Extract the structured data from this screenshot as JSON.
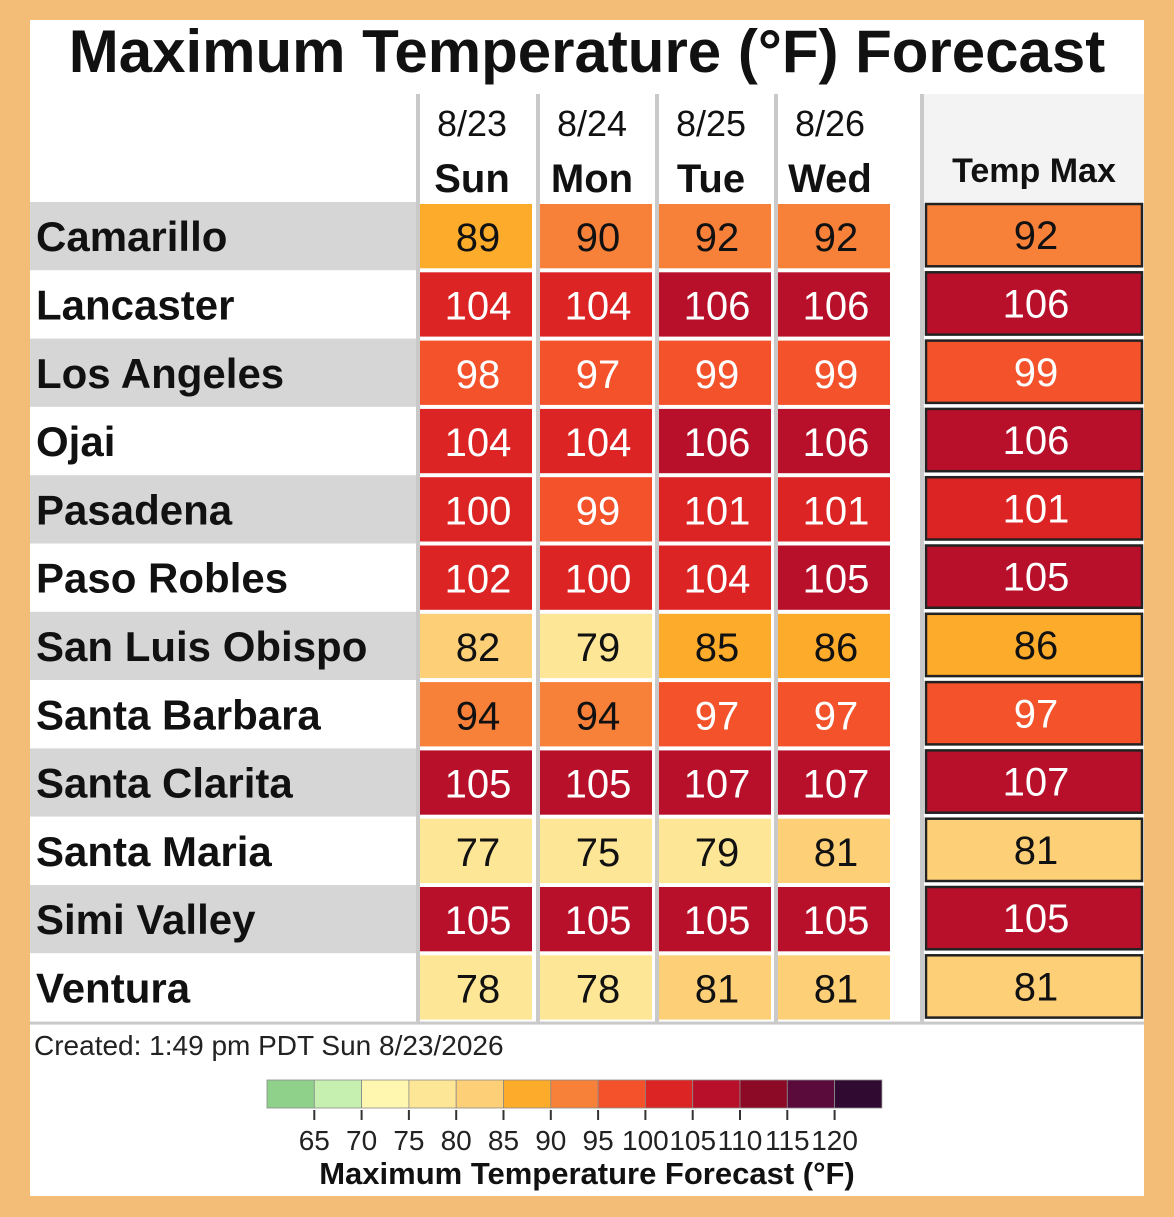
{
  "chart_data": {
    "type": "heatmap",
    "title": "Maximum Temperature (°F) Forecast",
    "columns": [
      {
        "date": "8/23",
        "day": "Sun"
      },
      {
        "date": "8/24",
        "day": "Mon"
      },
      {
        "date": "8/25",
        "day": "Tue"
      },
      {
        "date": "8/26",
        "day": "Wed"
      }
    ],
    "max_column_label": "Temp Max",
    "rows": [
      {
        "location": "Camarillo",
        "values": [
          89,
          90,
          92,
          92
        ],
        "max": 92
      },
      {
        "location": "Lancaster",
        "values": [
          104,
          104,
          106,
          106
        ],
        "max": 106
      },
      {
        "location": "Los Angeles",
        "values": [
          98,
          97,
          99,
          99
        ],
        "max": 99
      },
      {
        "location": "Ojai",
        "values": [
          104,
          104,
          106,
          106
        ],
        "max": 106
      },
      {
        "location": "Pasadena",
        "values": [
          100,
          99,
          101,
          101
        ],
        "max": 101
      },
      {
        "location": "Paso Robles",
        "values": [
          102,
          100,
          104,
          105
        ],
        "max": 105
      },
      {
        "location": "San Luis Obispo",
        "values": [
          82,
          79,
          85,
          86
        ],
        "max": 86
      },
      {
        "location": "Santa Barbara",
        "values": [
          94,
          94,
          97,
          97
        ],
        "max": 97
      },
      {
        "location": "Santa Clarita",
        "values": [
          105,
          105,
          107,
          107
        ],
        "max": 107
      },
      {
        "location": "Santa Maria",
        "values": [
          77,
          75,
          79,
          81
        ],
        "max": 81
      },
      {
        "location": "Simi Valley",
        "values": [
          105,
          105,
          105,
          105
        ],
        "max": 105
      },
      {
        "location": "Ventura",
        "values": [
          78,
          78,
          81,
          81
        ],
        "max": 81
      }
    ],
    "colorbar": {
      "title": "Maximum Temperature Forecast (°F)",
      "ticks": [
        65,
        70,
        75,
        80,
        85,
        90,
        95,
        100,
        105,
        110,
        115,
        120
      ],
      "colors": [
        "#8fd18a",
        "#c6f0b0",
        "#fff7b0",
        "#fde797",
        "#fdd078",
        "#fdab2a",
        "#f8813a",
        "#f4522b",
        "#dd2424",
        "#b8102a",
        "#8c0a25",
        "#5a0b3c",
        "#300a30"
      ]
    }
  },
  "footer": {
    "created": "Created: 1:49 pm PDT Sun 8/23/2026"
  }
}
